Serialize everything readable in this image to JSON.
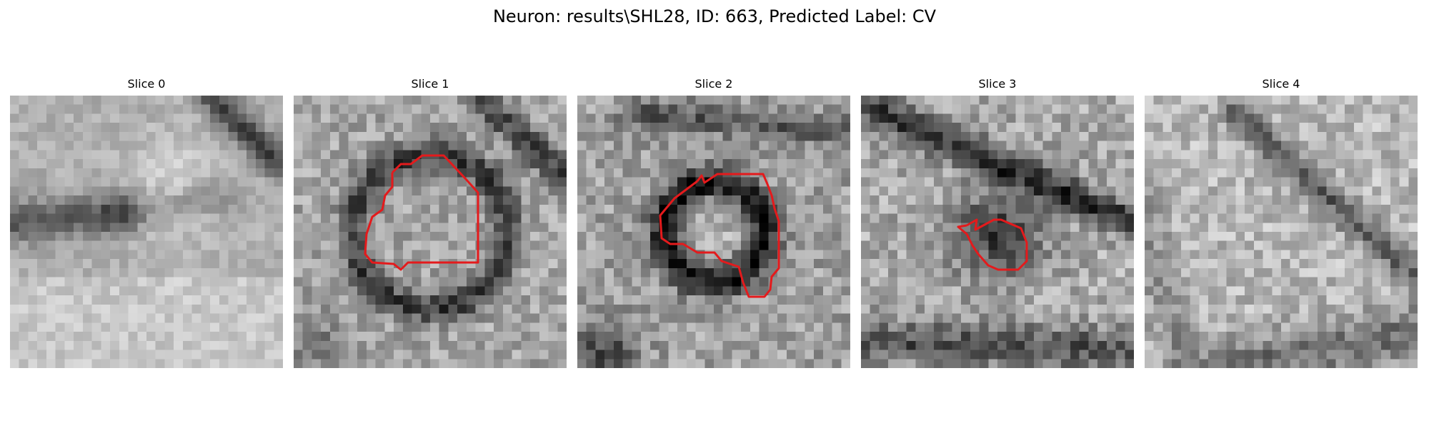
{
  "figure": {
    "title": "Neuron: results\\SHL28, ID: 663, Predicted Label: CV"
  },
  "panels": [
    {
      "title": "Slice 0"
    },
    {
      "title": "Slice 1"
    },
    {
      "title": "Slice 2"
    },
    {
      "title": "Slice 3"
    },
    {
      "title": "Slice 4"
    }
  ],
  "style": {
    "contour_color": "#e41a1c",
    "colormap": "gray"
  }
}
